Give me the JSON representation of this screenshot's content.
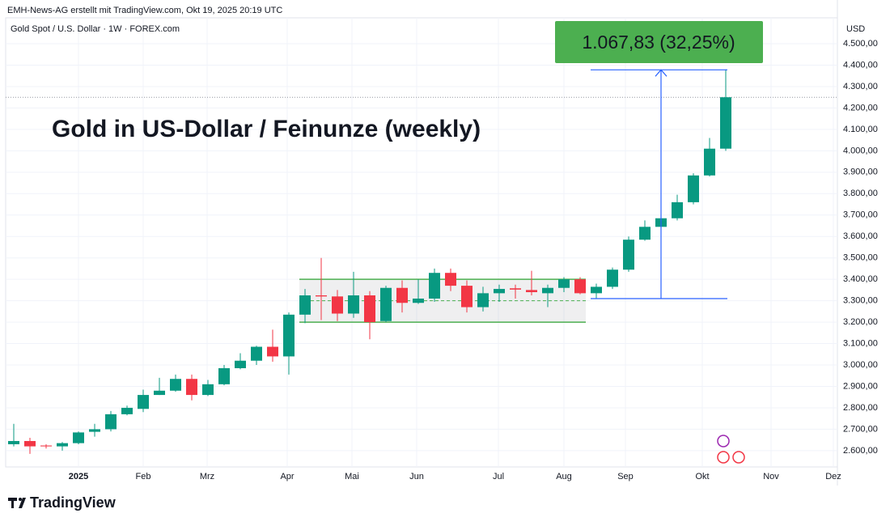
{
  "chart_data": {
    "type": "candlestick",
    "credit": "EMH-News-AG erstellt mit TradingView.com, Okt 19, 2025 20:19 UTC",
    "symbol": "Gold Spot / U.S. Dollar · 1W · FOREX.com",
    "currency": "USD",
    "title": "Gold in US-Dollar / Feinunze (weekly)",
    "brand": "TradingView",
    "up_color": "#089981",
    "down_color": "#f23645",
    "categories": [
      null,
      null,
      null,
      null,
      null,
      null,
      null,
      null,
      null,
      null,
      null,
      null,
      null,
      null,
      null,
      null,
      null,
      null,
      null,
      null,
      null,
      null,
      null,
      null,
      null,
      null,
      null,
      null,
      null,
      null,
      null,
      null,
      null,
      null,
      null,
      null,
      null,
      null,
      null,
      null,
      null,
      null,
      null,
      null,
      null
    ],
    "open": [
      2630,
      2645,
      2624,
      2620,
      2635,
      2688,
      2700,
      2770,
      2795,
      2860,
      2880,
      2935,
      2860,
      2910,
      2985,
      3020,
      3085,
      3040,
      3235,
      3325,
      3320,
      3240,
      3325,
      3205,
      3360,
      3290,
      3310,
      3430,
      3370,
      3270,
      3335,
      3358,
      3350,
      3335,
      3360,
      3400,
      3335,
      3365,
      3445,
      3585,
      3645,
      3685,
      3760,
      3885,
      4010
    ],
    "high": [
      2725,
      2660,
      2630,
      2640,
      2690,
      2725,
      2785,
      2810,
      2885,
      2940,
      2955,
      2955,
      2930,
      3000,
      3055,
      3090,
      3165,
      3245,
      3355,
      3500,
      3350,
      3435,
      3345,
      3370,
      3395,
      3400,
      3450,
      3450,
      3395,
      3365,
      3375,
      3375,
      3440,
      3375,
      3410,
      3410,
      3380,
      3455,
      3600,
      3675,
      3705,
      3795,
      3895,
      4060,
      4380
    ],
    "low": [
      2620,
      2585,
      2610,
      2600,
      2630,
      2665,
      2690,
      2765,
      2780,
      2860,
      2875,
      2835,
      2855,
      2905,
      2980,
      3000,
      3015,
      2955,
      3195,
      3210,
      3205,
      3220,
      3120,
      3200,
      3245,
      3285,
      3295,
      3345,
      3245,
      3250,
      3295,
      3310,
      3325,
      3270,
      3340,
      3330,
      3310,
      3355,
      3435,
      3580,
      3630,
      3675,
      3750,
      3880,
      4000
    ],
    "close": [
      2645,
      2620,
      2620,
      2635,
      2685,
      2700,
      2770,
      2800,
      2860,
      2880,
      2935,
      2860,
      2910,
      2985,
      3020,
      3085,
      3040,
      3235,
      3325,
      3320,
      3240,
      3325,
      3200,
      3360,
      3290,
      3310,
      3430,
      3370,
      3270,
      3335,
      3355,
      3352,
      3340,
      3360,
      3400,
      3335,
      3365,
      3445,
      3585,
      3645,
      3685,
      3760,
      3885,
      4010,
      4250
    ],
    "xlim": [
      -0.5,
      50.9
    ],
    "xticks": [
      {
        "value": 4,
        "label": "2025"
      },
      {
        "value": 8,
        "label": "Feb"
      },
      {
        "value": 11.95,
        "label": "Mrz"
      },
      {
        "value": 16.9,
        "label": "Apr"
      },
      {
        "value": 20.9,
        "label": "Mai"
      },
      {
        "value": 24.9,
        "label": "Jun"
      },
      {
        "value": 29.95,
        "label": "Jul"
      },
      {
        "value": 34,
        "label": "Aug"
      },
      {
        "value": 37.8,
        "label": "Sep"
      },
      {
        "value": 42.55,
        "label": "Okt"
      },
      {
        "value": 46.8,
        "label": "Nov"
      },
      {
        "value": 50.65,
        "label": "Dez"
      }
    ],
    "ylim": [
      2524,
      4621
    ],
    "yticks": [
      {
        "value": 2600,
        "label": "2.600,00"
      },
      {
        "value": 2700,
        "label": "2.700,00"
      },
      {
        "value": 2800,
        "label": "2.800,00"
      },
      {
        "value": 2900,
        "label": "2.900,00"
      },
      {
        "value": 3000,
        "label": "3.000,00"
      },
      {
        "value": 3100,
        "label": "3.100,00"
      },
      {
        "value": 3200,
        "label": "3.200,00"
      },
      {
        "value": 3300,
        "label": "3.300,00"
      },
      {
        "value": 3400,
        "label": "3.400,00"
      },
      {
        "value": 3500,
        "label": "3.500,00"
      },
      {
        "value": 3600,
        "label": "3.600,00"
      },
      {
        "value": 3700,
        "label": "3.700,00"
      },
      {
        "value": 3800,
        "label": "3.800,00"
      },
      {
        "value": 3900,
        "label": "3.900,00"
      },
      {
        "value": 4000,
        "label": "4.000,00"
      },
      {
        "value": 4100,
        "label": "4.100,00"
      },
      {
        "value": 4200,
        "label": "4.200,00"
      },
      {
        "value": 4300,
        "label": "4.300,00"
      },
      {
        "value": 4400,
        "label": "4.400,00"
      },
      {
        "value": 4500,
        "label": "4.500,00"
      }
    ],
    "grid": true,
    "range": {
      "low": 3200,
      "mid": 3300,
      "high": 3400
    },
    "measure": {
      "from": 3310,
      "to": 4378,
      "label": "1.067,83 (32,25%)",
      "color": "#4caf50",
      "line_color": "#2962ff"
    }
  }
}
